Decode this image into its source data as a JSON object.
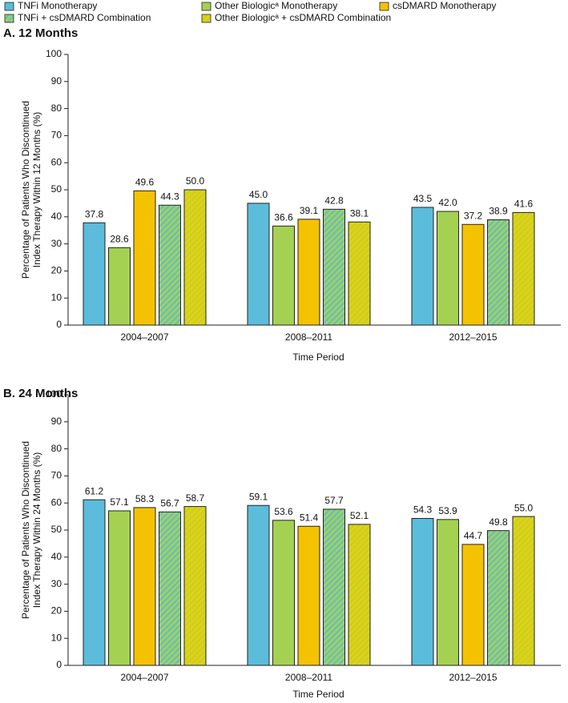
{
  "chart_data": [
    {
      "type": "bar",
      "title": "A. 12 Months",
      "ylabel": [
        "Percentage of Patients Who Discontinued",
        "Index Therapy Within 12 Months (%)"
      ],
      "xlabel": "Time Period",
      "categories": [
        "2004–2007",
        "2008–2011",
        "2012–2015"
      ],
      "series": [
        {
          "name": "TNFi Monotherapy",
          "color": "#5bbcdb",
          "values": [
            37.8,
            45.0,
            43.5
          ],
          "value_labels": [
            "37.8",
            "45.0",
            "43.5"
          ]
        },
        {
          "name": "Other Biologicᵃ Monotherapy",
          "color": "#a5d152",
          "values": [
            28.6,
            36.6,
            42.0
          ],
          "value_labels": [
            "28.6",
            "36.6",
            "42.0"
          ]
        },
        {
          "name": "csDMARD Monotherapy",
          "color": "#f5c200",
          "values": [
            49.6,
            39.1,
            37.2
          ],
          "value_labels": [
            "49.6",
            "39.1",
            "37.2"
          ]
        },
        {
          "name": "TNFi + csDMARD Combination",
          "color": "#a5d152",
          "color2": "#5bbcdb",
          "pattern": "hatch",
          "values": [
            44.3,
            42.8,
            38.9
          ],
          "value_labels": [
            "44.3",
            "42.8",
            "38.9"
          ]
        },
        {
          "name": "Other Biologicᵃ + csDMARD Combination",
          "color": "#c9d92c",
          "color2": "#e8c400",
          "pattern": "hatch",
          "values": [
            50.0,
            38.1,
            41.6
          ],
          "value_labels": [
            "50.0",
            "38.1",
            "41.6"
          ]
        }
      ],
      "ylim": [
        0,
        100
      ],
      "yticks": [
        0,
        10,
        20,
        30,
        40,
        50,
        60,
        70,
        80,
        90,
        100
      ]
    },
    {
      "type": "bar",
      "title": "B. 24 Months",
      "ylabel": [
        "Percentage of Patients Who Discontinued",
        "Index Therapy Within 24 Months (%)"
      ],
      "xlabel": "Time Period",
      "categories": [
        "2004–2007",
        "2008–2011",
        "2012–2015"
      ],
      "series": [
        {
          "color": "#5bbcdb",
          "values": [
            61.2,
            59.1,
            54.3
          ],
          "value_labels": [
            "61.2",
            "59.1",
            "54.3"
          ]
        },
        {
          "color": "#a5d152",
          "values": [
            57.1,
            53.6,
            53.9
          ],
          "value_labels": [
            "57.1",
            "53.6",
            "53.9"
          ]
        },
        {
          "color": "#f5c200",
          "values": [
            58.3,
            51.4,
            44.7
          ],
          "value_labels": [
            "58.3",
            "51.4",
            "44.7"
          ]
        },
        {
          "color": "#a5d152",
          "color2": "#5bbcdb",
          "pattern": "hatch",
          "values": [
            56.7,
            57.7,
            49.8
          ],
          "value_labels": [
            "56.7",
            "57.7",
            "49.8"
          ]
        },
        {
          "color": "#c9d92c",
          "color2": "#e8c400",
          "pattern": "hatch",
          "values": [
            58.7,
            52.1,
            55.0
          ],
          "value_labels": [
            "58.7",
            "52.1",
            "55.0"
          ]
        }
      ],
      "ylim": [
        0,
        100
      ],
      "yticks": [
        0,
        10,
        20,
        30,
        40,
        50,
        60,
        70,
        80,
        90,
        100
      ]
    }
  ]
}
